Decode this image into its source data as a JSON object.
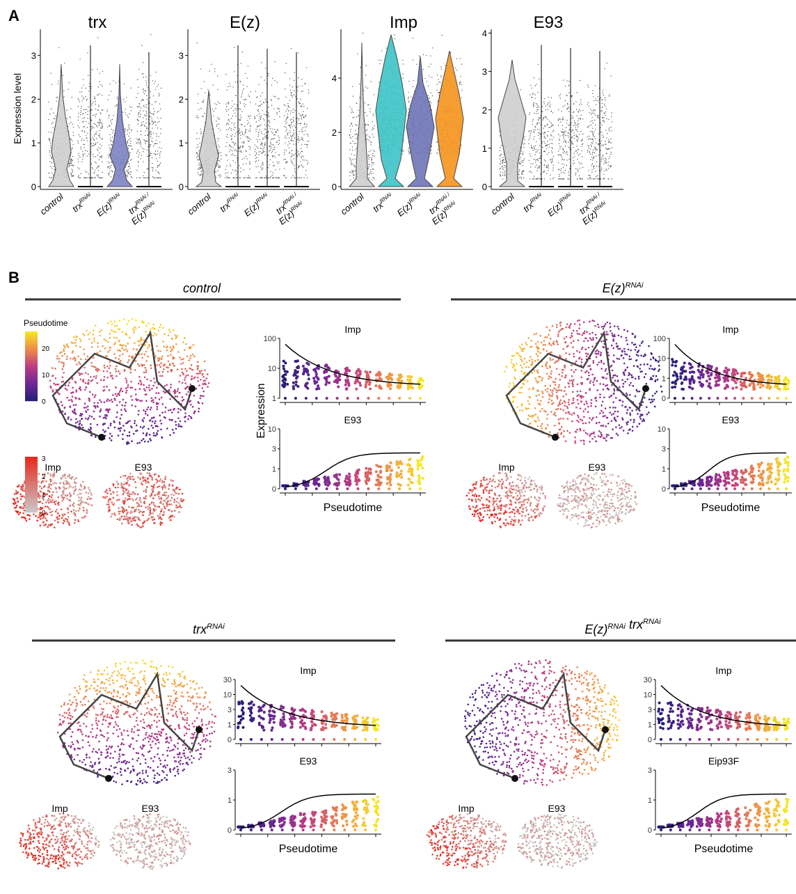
{
  "figure": {
    "panel_a_letter": "A",
    "panel_b_letter": "B",
    "violin_ylabel": "Expression level",
    "pseudotime_axis_label": "Pseudotime",
    "expression_axis_label": "Expression",
    "pseudotime_legend_title": "Pseudotime",
    "pseudotime_legend_ticks": [
      "0",
      "10",
      "20"
    ],
    "expression_legend_ticks": [
      "0",
      "1",
      "2",
      "3"
    ],
    "genotype_labels": {
      "control": "control",
      "trx": "trx",
      "ez": "E(z)",
      "rnai": "RNAi",
      "slash": "/"
    },
    "violin_panels": [
      {
        "gene": "trx",
        "yticks": [
          "0",
          "1",
          "2",
          "3"
        ],
        "ymax": 3.6
      },
      {
        "gene": "E(z)",
        "yticks": [
          "0",
          "1",
          "2",
          "3"
        ],
        "ymax": 3.6
      },
      {
        "gene": "Imp",
        "yticks": [
          "0",
          "2",
          "4"
        ],
        "ymax": 5.8
      },
      {
        "gene": "E93",
        "yticks": [
          "0",
          "1",
          "2",
          "3",
          "4"
        ],
        "ymax": 4.1
      }
    ],
    "b_panels": [
      {
        "title_parts": [
          "control"
        ],
        "genes": [
          "Imp",
          "E93"
        ],
        "top_plot_title": "Imp",
        "bottom_plot_title": "E93",
        "top_ticks": [
          "1",
          "10",
          "100"
        ],
        "bottom_ticks": [
          "0",
          "1",
          "3",
          "10"
        ]
      },
      {
        "title_parts": [
          "E(z)RNAi"
        ],
        "genes": [
          "Imp",
          "E93"
        ],
        "top_plot_title": "Imp",
        "bottom_plot_title": "E93",
        "top_ticks": [
          "0",
          "1",
          "10",
          "100"
        ],
        "bottom_ticks": [
          "0",
          "1",
          "3",
          "10"
        ]
      },
      {
        "title_parts": [
          "trxRNAi"
        ],
        "genes": [
          "Imp",
          "E93"
        ],
        "top_plot_title": "Imp",
        "bottom_plot_title": "E93",
        "top_ticks": [
          "0",
          "1",
          "3",
          "10",
          "30"
        ],
        "bottom_ticks": [
          "0",
          "1",
          "3"
        ]
      },
      {
        "title_parts": [
          "E(z)RNAi",
          "trxRNAi"
        ],
        "genes": [
          "Imp",
          "E93"
        ],
        "top_plot_title": "Imp",
        "bottom_plot_title": "Eip93F",
        "top_ticks": [
          "0",
          "1",
          "3",
          "10",
          "30"
        ],
        "bottom_ticks": [
          "0",
          "1",
          "3"
        ]
      }
    ],
    "colors": {
      "control_violin": "#cfcfcf",
      "ez_violin": "#7d83c4",
      "trx_imp_violin": "#3cc4c6",
      "ez_imp_violin": "#6e75b8",
      "double_imp_violin": "#f7941d",
      "expr_low": "#c8c8c8",
      "expr_high": "#e8281c"
    }
  },
  "chart_data": [
    {
      "type": "violin",
      "title": "trx",
      "ylabel": "Expression level",
      "categories": [
        "control",
        "trxRNAi",
        "E(z)RNAi",
        "trxRNAi / E(z)RNAi"
      ],
      "ylim": [
        0,
        3.5
      ],
      "medians": [
        0.7,
        0,
        0.6,
        0
      ]
    },
    {
      "type": "violin",
      "title": "E(z)",
      "categories": [
        "control",
        "trxRNAi",
        "E(z)RNAi",
        "trxRNAi / E(z)RNAi"
      ],
      "ylim": [
        0,
        3.5
      ],
      "medians": [
        0.6,
        0,
        0,
        0
      ]
    },
    {
      "type": "violin",
      "title": "Imp",
      "categories": [
        "control",
        "trxRNAi",
        "E(z)RNAi",
        "trxRNAi / E(z)RNAi"
      ],
      "ylim": [
        0,
        5.5
      ],
      "medians": [
        1.0,
        2.9,
        2.2,
        2.4
      ]
    },
    {
      "type": "violin",
      "title": "E93",
      "categories": [
        "control",
        "trxRNAi",
        "E(z)RNAi",
        "trxRNAi / E(z)RNAi"
      ],
      "ylim": [
        0,
        4
      ],
      "medians": [
        1.6,
        0,
        0,
        0
      ]
    }
  ]
}
